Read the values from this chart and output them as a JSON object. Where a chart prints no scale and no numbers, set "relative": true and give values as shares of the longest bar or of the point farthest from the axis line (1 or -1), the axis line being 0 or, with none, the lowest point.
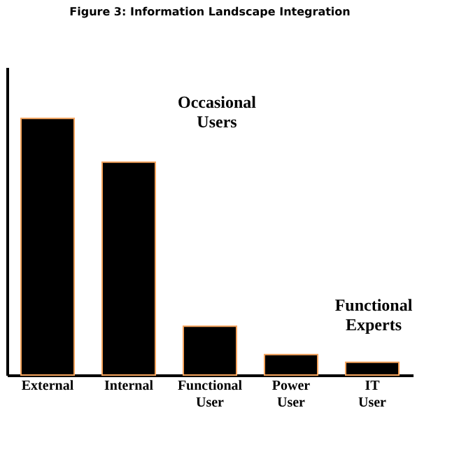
{
  "chart_data": {
    "type": "bar",
    "title": "Figure 3: Information Landscape Integration",
    "categories": [
      "External",
      "Internal",
      "Functional User",
      "Power User",
      "IT User"
    ],
    "values": [
      1,
      0.83,
      0.19,
      0.08,
      0.05
    ],
    "colors": [
      "#000000",
      "#000000",
      "#000000",
      "#000000",
      "#000000"
    ],
    "relative": true,
    "annotations": [
      "Occasional Users",
      "Functional Experts"
    ],
    "grid": false
  }
}
